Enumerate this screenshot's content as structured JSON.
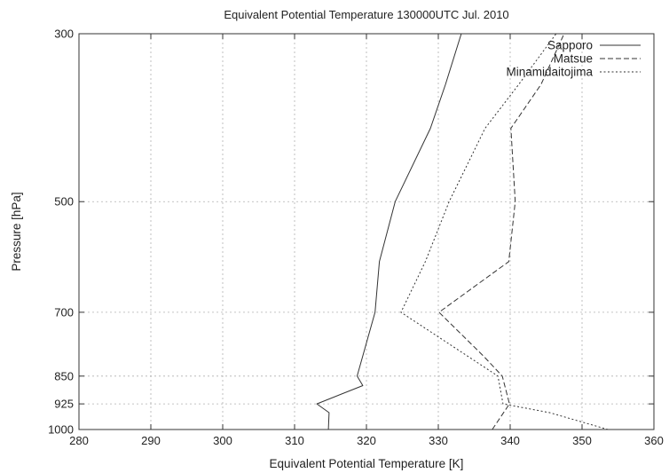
{
  "chart_data": {
    "type": "line",
    "title": "Equivalent Potential Temperature 130000UTC Jul. 2010",
    "xlabel": "Equivalent Potential Temperature [K]",
    "ylabel": "Pressure [hPa]",
    "xlim": [
      280,
      360
    ],
    "ylim": [
      1000,
      300
    ],
    "y_scale": "log",
    "x_ticks": [
      "280",
      "290",
      "300",
      "310",
      "320",
      "330",
      "340",
      "350",
      "360"
    ],
    "y_ticks": [
      "300",
      "500",
      "700",
      "850",
      "925",
      "1000"
    ],
    "grid": true,
    "legend_position": "top-right",
    "series": [
      {
        "name": "Sapporo",
        "color": "#333333",
        "dash": "solid",
        "points": [
          {
            "y": 1000,
            "x": 314.7
          },
          {
            "y": 950,
            "x": 314.8
          },
          {
            "y": 925,
            "x": 313.1
          },
          {
            "y": 875,
            "x": 319.5
          },
          {
            "y": 850,
            "x": 318.7
          },
          {
            "y": 700,
            "x": 321.2
          },
          {
            "y": 600,
            "x": 321.8
          },
          {
            "y": 500,
            "x": 324.0
          },
          {
            "y": 400,
            "x": 328.9
          },
          {
            "y": 350,
            "x": 331.0
          },
          {
            "y": 300,
            "x": 333.2
          }
        ]
      },
      {
        "name": "Matsue",
        "color": "#333333",
        "dash": "dashed",
        "points": [
          {
            "y": 1000,
            "x": 337.5
          },
          {
            "y": 925,
            "x": 339.9
          },
          {
            "y": 850,
            "x": 338.9
          },
          {
            "y": 800,
            "x": 336.3
          },
          {
            "y": 700,
            "x": 330.1
          },
          {
            "y": 600,
            "x": 339.8
          },
          {
            "y": 500,
            "x": 340.7
          },
          {
            "y": 400,
            "x": 340.1
          },
          {
            "y": 350,
            "x": 344.3
          },
          {
            "y": 300,
            "x": 347.5
          }
        ]
      },
      {
        "name": "Minamidaitojima",
        "color": "#333333",
        "dash": "dotted",
        "points": [
          {
            "y": 1000,
            "x": 353.6
          },
          {
            "y": 950,
            "x": 345.5
          },
          {
            "y": 925,
            "x": 339.0
          },
          {
            "y": 850,
            "x": 338.3
          },
          {
            "y": 700,
            "x": 324.8
          },
          {
            "y": 600,
            "x": 328.2
          },
          {
            "y": 500,
            "x": 331.5
          },
          {
            "y": 400,
            "x": 336.5
          },
          {
            "y": 350,
            "x": 341.2
          },
          {
            "y": 300,
            "x": 346.4
          }
        ]
      }
    ]
  }
}
